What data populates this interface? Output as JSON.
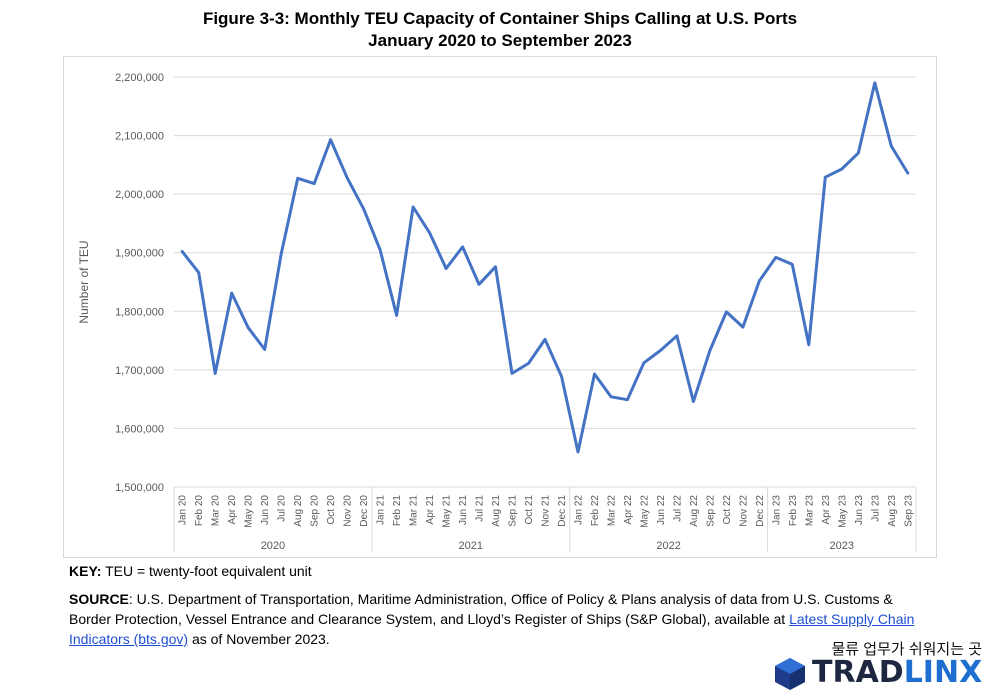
{
  "title_line1": "Figure 3-3: Monthly TEU Capacity of Container Ships Calling at U.S. Ports",
  "title_line2": "January 2020 to September 2023",
  "key_label": "KEY:",
  "key_text": "TEU = twenty-foot equivalent unit",
  "source_label": "SOURCE",
  "source_text": ": U.S. Department of Transportation, Maritime Administration, Office of Policy & Plans analysis of data from U.S. Customs & Border Protection, Vessel Entrance and Clearance System, and Lloyd’s Register of Ships (S&P Global), available at ",
  "source_link": "Latest Supply Chain Indicators (bts.gov)",
  "source_tail": " as of November 2023.",
  "brand_tagline": "물류 업무가 쉬워지는 곳",
  "brand_word_1": "TRAD",
  "brand_word_2": "LINX",
  "line_color": "#4472c4",
  "chart_data": {
    "type": "line",
    "title": "Figure 3-3: Monthly TEU Capacity of Container Ships Calling at U.S. Ports",
    "subtitle": "January 2020 to September 2023",
    "xlabel": "",
    "ylabel": "Number of TEU",
    "ylim": [
      1500000,
      2200000
    ],
    "yticks": [
      "1,500,000",
      "1,600,000",
      "1,700,000",
      "1,800,000",
      "1,900,000",
      "2,000,000",
      "2,100,000",
      "2,200,000"
    ],
    "grid": true,
    "categories": [
      "Jan 20",
      "Feb 20",
      "Mar 20",
      "Apr 20",
      "May 20",
      "Jun 20",
      "Jul 20",
      "Aug 20",
      "Sep 20",
      "Oct 20",
      "Nov 20",
      "Dec 20",
      "Jan 21",
      "Feb 21",
      "Mar 21",
      "Apr 21",
      "May 21",
      "Jun 21",
      "Jul 21",
      "Aug 21",
      "Sep 21",
      "Oct 21",
      "Nov 21",
      "Dec 21",
      "Jan 22",
      "Feb 22",
      "Mar 22",
      "Apr 22",
      "May 22",
      "Jun 22",
      "Jul 22",
      "Aug 22",
      "Sep 22",
      "Oct 22",
      "Nov 22",
      "Dec 22",
      "Jan 23",
      "Feb 23",
      "Mar 23",
      "Apr 23",
      "May 23",
      "Jun 23",
      "Jul 23",
      "Aug 23",
      "Sep 23"
    ],
    "year_groups": [
      {
        "label": "2020",
        "count": 12
      },
      {
        "label": "2021",
        "count": 12
      },
      {
        "label": "2022",
        "count": 12
      },
      {
        "label": "2023",
        "count": 9
      }
    ],
    "values": [
      1902000,
      1866000,
      1694000,
      1831000,
      1772000,
      1735000,
      1898000,
      2027000,
      2018000,
      2093000,
      2028000,
      1975000,
      1905000,
      1793000,
      1978000,
      1934000,
      1873000,
      1910000,
      1846000,
      1876000,
      1694000,
      1711000,
      1752000,
      1689000,
      1560000,
      1693000,
      1654000,
      1649000,
      1712000,
      1733000,
      1758000,
      1646000,
      1733000,
      1799000,
      1773000,
      1852000,
      1892000,
      1880000,
      1743000,
      2029000,
      2043000,
      2070000,
      2190000,
      2082000,
      2036000
    ]
  }
}
